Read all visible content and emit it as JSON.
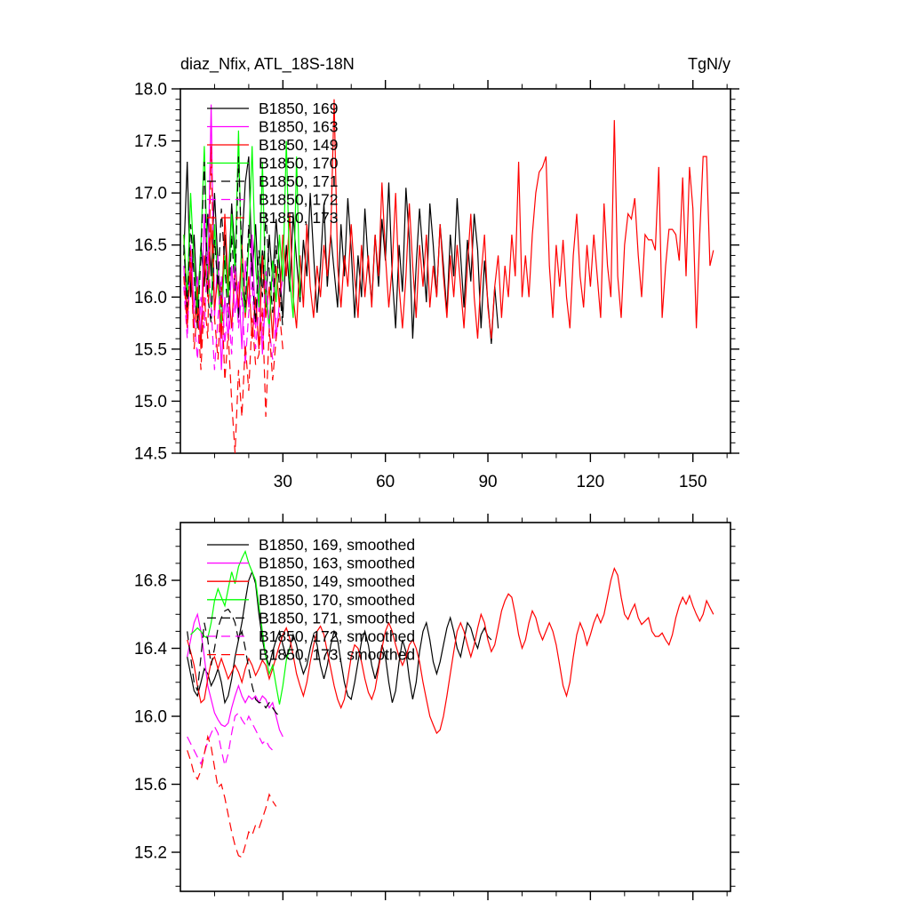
{
  "figure": {
    "background": "#ffffff"
  },
  "chart_data": [
    {
      "type": "line",
      "title": "diaz_Nfix, ATL_18S-18N",
      "units": "TgN/y",
      "xlim": [
        0,
        161
      ],
      "ylim": [
        14.5,
        18.0
      ],
      "xticks_major": [
        30,
        60,
        90,
        120,
        150
      ],
      "xtick_minor_step": 10,
      "yticks_major": [
        14.5,
        15.0,
        15.5,
        16.0,
        16.5,
        17.0,
        17.5,
        18.0
      ],
      "ytick_minor_step": 0.1,
      "show_x_tick_labels": true,
      "legend_position": "top-left-inside",
      "series": [
        {
          "name": "B1850, 169",
          "color": "#000000",
          "dash": false,
          "x_start": 1,
          "values": [
            16.4,
            17.3,
            16.0,
            16.6,
            15.9,
            16.5,
            16.1,
            16.8,
            16.2,
            17.0,
            16.3,
            15.9,
            16.6,
            16.1,
            16.9,
            16.4,
            15.8,
            16.5,
            17.1,
            17.35,
            16.2,
            16.7,
            16.0,
            16.45,
            15.9,
            16.6,
            16.15,
            16.75,
            16.3,
            15.8,
            16.5,
            16.05,
            16.8,
            16.35,
            15.95,
            16.55,
            16.2,
            17.0,
            16.4,
            15.85,
            16.3,
            16.9,
            16.1,
            16.6,
            16.25,
            15.9,
            16.7,
            16.2,
            16.95,
            16.45,
            15.8,
            16.4,
            16.0,
            16.85,
            16.3,
            15.95,
            16.6,
            16.1,
            16.75,
            16.35,
            17.1,
            16.2,
            15.7,
            16.5,
            16.05,
            17.05,
            16.55,
            15.6,
            16.3,
            16.85,
            16.4,
            15.95,
            16.9,
            16.5,
            16.0,
            16.7,
            16.3,
            15.85,
            16.6,
            16.2,
            16.95,
            16.4,
            15.9,
            16.55,
            16.15,
            16.8,
            16.45,
            15.7,
            16.35,
            15.95,
            15.55,
            16.1,
            15.7
          ]
        },
        {
          "name": "B1850, 163",
          "color": "#ff00ff",
          "dash": false,
          "x_start": 1,
          "values": [
            16.3,
            15.7,
            16.5,
            15.9,
            16.2,
            15.6,
            16.8,
            16.1,
            17.85,
            15.8,
            16.4,
            15.3,
            16.0,
            15.6,
            16.3,
            15.85,
            16.15,
            15.5,
            16.35,
            15.9,
            16.6,
            15.7,
            16.2,
            15.45,
            16.05,
            15.75,
            16.3,
            15.6,
            15.95,
            16.2
          ]
        },
        {
          "name": "B1850, 149",
          "color": "#ff0000",
          "dash": false,
          "x_start": 1,
          "values": [
            16.6,
            15.8,
            16.3,
            15.7,
            16.1,
            15.5,
            16.4,
            16.0,
            16.7,
            15.9,
            16.2,
            15.6,
            16.8,
            16.1,
            15.7,
            16.3,
            15.9,
            16.5,
            15.8,
            16.2,
            15.6,
            16.0,
            15.5,
            16.4,
            15.8,
            16.1,
            15.6,
            16.3,
            15.9,
            16.6,
            16.2,
            16.8,
            16.0,
            15.7,
            16.4,
            15.9,
            16.7,
            16.1,
            15.8,
            16.3,
            16.0,
            16.5,
            16.2,
            16.6,
            17.9,
            16.3,
            15.9,
            16.4,
            16.1,
            16.7,
            16.2,
            15.8,
            16.5,
            16.0,
            16.4,
            15.9,
            16.6,
            16.2,
            17.1,
            16.4,
            15.9,
            16.3,
            17.0,
            16.1,
            15.7,
            16.2,
            16.9,
            16.3,
            15.8,
            16.5,
            16.1,
            16.6,
            15.9,
            16.3,
            16.0,
            16.7,
            16.2,
            15.8,
            16.4,
            16.0,
            16.5,
            16.1,
            15.7,
            16.3,
            16.8,
            16.0,
            15.6,
            16.2,
            16.6,
            15.9,
            15.6,
            16.1,
            16.4,
            15.8,
            16.3,
            16.0,
            16.6,
            16.2,
            17.3,
            16.0,
            16.4,
            16.0,
            16.6,
            17.0,
            17.2,
            17.25,
            17.35,
            16.3,
            15.8,
            16.5,
            16.1,
            16.55,
            16.0,
            15.7,
            16.4,
            16.8,
            16.2,
            15.9,
            16.5,
            16.1,
            16.6,
            16.2,
            15.8,
            16.9,
            16.3,
            16.0,
            17.7,
            16.2,
            15.8,
            16.5,
            16.8,
            16.75,
            16.95,
            16.4,
            16.0,
            16.6,
            16.55,
            16.55,
            16.45,
            17.25,
            15.8,
            16.3,
            16.65,
            16.65,
            16.6,
            16.35,
            17.15,
            16.2,
            17.25,
            16.85,
            15.7,
            16.6,
            17.35,
            17.35,
            16.3,
            16.45
          ]
        },
        {
          "name": "B1850, 170",
          "color": "#00ff00",
          "dash": false,
          "x_start": 1,
          "values": [
            16.6,
            16.0,
            17.0,
            16.3,
            15.8,
            16.5,
            17.45,
            16.2,
            15.9,
            16.7,
            16.1,
            15.75,
            16.4,
            16.0,
            16.8,
            16.25,
            17.6,
            16.1,
            15.85,
            16.5,
            17.45,
            16.3,
            15.9,
            17.3,
            16.0,
            15.7,
            16.35,
            15.95,
            16.6,
            16.15,
            17.5,
            16.2,
            15.8,
            17.35,
            16.0
          ]
        },
        {
          "name": "B1850, 171",
          "color": "#000000",
          "dash": true,
          "x_start": 1,
          "values": [
            16.5,
            15.9,
            16.7,
            16.2,
            15.7,
            16.4,
            17.3,
            16.0,
            15.75,
            16.55,
            16.1,
            16.85,
            16.3,
            15.8,
            16.6,
            16.05,
            17.35,
            16.4,
            15.9,
            16.7,
            16.2,
            15.75,
            16.45,
            16.0,
            16.8,
            16.25,
            15.85,
            16.5,
            16.1,
            15.7
          ]
        },
        {
          "name": "B1850, 172",
          "color": "#ff00ff",
          "dash": true,
          "x_start": 1,
          "values": [
            16.1,
            15.6,
            16.4,
            15.8,
            15.4,
            16.0,
            15.7,
            16.45,
            15.9,
            15.3,
            15.8,
            16.2,
            15.55,
            15.95,
            15.45,
            16.3,
            15.7,
            16.05,
            15.35,
            15.85,
            16.15,
            15.5,
            15.9,
            15.6,
            16.25,
            15.7,
            15.4,
            15.8
          ]
        },
        {
          "name": "B1850, 173",
          "color": "#ff0000",
          "dash": true,
          "x_start": 1,
          "values": [
            16.2,
            15.7,
            16.45,
            15.5,
            15.9,
            15.3,
            16.0,
            15.6,
            17.45,
            15.8,
            15.4,
            16.1,
            15.2,
            15.65,
            15.0,
            14.5,
            15.3,
            14.85,
            15.55,
            15.1,
            15.8,
            15.35,
            15.45,
            15.9,
            14.85,
            15.7,
            15.2,
            15.6,
            15.85,
            15.5
          ]
        }
      ]
    },
    {
      "type": "line",
      "title": "",
      "units": "",
      "xlim": [
        0,
        161
      ],
      "ylim": [
        14.97,
        17.14
      ],
      "xticks_major": [
        30,
        60,
        90,
        120,
        150
      ],
      "xtick_minor_step": 10,
      "yticks_major": [
        15.2,
        15.6,
        16.0,
        16.4,
        16.8
      ],
      "ytick_minor_step": 0.1,
      "show_x_tick_labels": false,
      "legend_position": "top-left-inside",
      "series": [
        {
          "name": "B1850, 169, smoothed",
          "color": "#000000",
          "dash": false,
          "x_start": 2,
          "values": [
            16.35,
            16.25,
            16.15,
            16.12,
            16.2,
            16.28,
            16.25,
            16.18,
            16.22,
            16.28,
            16.2,
            16.08,
            16.12,
            16.22,
            16.35,
            16.45,
            16.55,
            16.68,
            16.8,
            16.85,
            16.78,
            16.6,
            16.45,
            16.35,
            16.3,
            16.38,
            16.45,
            16.5,
            16.42,
            16.35,
            16.4,
            16.48,
            16.42,
            16.32,
            16.25,
            16.3,
            16.4,
            16.48,
            16.42,
            16.3,
            16.22,
            16.3,
            16.42,
            16.5,
            16.45,
            16.32,
            16.2,
            16.12,
            16.1,
            16.2,
            16.32,
            16.44,
            16.5,
            16.42,
            16.3,
            16.22,
            16.3,
            16.42,
            16.35,
            16.2,
            16.08,
            16.15,
            16.32,
            16.45,
            16.38,
            16.22,
            16.1,
            16.2,
            16.38,
            16.5,
            16.55,
            16.45,
            16.32,
            16.25,
            16.32,
            16.42,
            16.52,
            16.58,
            16.5,
            16.4,
            16.35,
            16.45,
            16.55,
            16.52,
            16.45,
            16.4,
            16.48,
            16.52,
            16.47,
            16.45
          ]
        },
        {
          "name": "B1850, 163, smoothed",
          "color": "#ff00ff",
          "dash": false,
          "x_start": 2,
          "values": [
            16.35,
            16.45,
            16.55,
            16.6,
            16.5,
            16.35,
            16.18,
            16.1,
            16.02,
            15.98,
            15.95,
            15.94,
            15.96,
            16.05,
            16.12,
            16.18,
            16.12,
            16.08,
            16.12,
            16.1,
            16.12,
            16.08,
            16.12,
            16.1,
            16.05,
            16.08,
            16.0,
            15.92,
            15.88
          ]
        },
        {
          "name": "B1850, 149, smoothed",
          "color": "#ff0000",
          "dash": false,
          "x_start": 2,
          "values": [
            16.45,
            16.38,
            16.3,
            16.18,
            16.08,
            16.1,
            16.22,
            16.32,
            16.35,
            16.28,
            16.34,
            16.28,
            16.22,
            16.26,
            16.3,
            16.26,
            16.2,
            16.28,
            16.34,
            16.3,
            16.24,
            16.28,
            16.33,
            16.3,
            16.22,
            16.28,
            16.35,
            16.42,
            16.48,
            16.52,
            16.46,
            16.36,
            16.25,
            16.18,
            16.12,
            16.2,
            16.32,
            16.42,
            16.5,
            16.53,
            16.48,
            16.38,
            16.28,
            16.18,
            16.1,
            16.05,
            16.1,
            16.22,
            16.35,
            16.42,
            16.4,
            16.32,
            16.22,
            16.14,
            16.1,
            16.16,
            16.28,
            16.4,
            16.5,
            16.55,
            16.5,
            16.42,
            16.35,
            16.3,
            16.35,
            16.42,
            16.45,
            16.4,
            16.32,
            16.2,
            16.1,
            16.0,
            15.95,
            15.9,
            15.92,
            16.0,
            16.12,
            16.25,
            16.38,
            16.5,
            16.55,
            16.5,
            16.42,
            16.35,
            16.42,
            16.52,
            16.6,
            16.55,
            16.45,
            16.38,
            16.42,
            16.52,
            16.62,
            16.68,
            16.72,
            16.7,
            16.6,
            16.48,
            16.4,
            16.45,
            16.55,
            16.62,
            16.58,
            16.5,
            16.45,
            16.5,
            16.55,
            16.5,
            16.42,
            16.3,
            16.18,
            16.12,
            16.2,
            16.35,
            16.48,
            16.55,
            16.5,
            16.42,
            16.48,
            16.55,
            16.6,
            16.55,
            16.6,
            16.7,
            16.8,
            16.87,
            16.83,
            16.7,
            16.6,
            16.57,
            16.62,
            16.66,
            16.58,
            16.54,
            16.56,
            16.58,
            16.5,
            16.47,
            16.47,
            16.49,
            16.45,
            16.42,
            16.48,
            16.58,
            16.65,
            16.7,
            16.66,
            16.71,
            16.65,
            16.6,
            16.56,
            16.6,
            16.68,
            16.64,
            16.6
          ]
        },
        {
          "name": "B1850, 170, smoothed",
          "color": "#00ff00",
          "dash": false,
          "x_start": 3,
          "values": [
            16.48,
            16.5,
            16.52,
            16.5,
            16.47,
            16.46,
            16.55,
            16.68,
            16.75,
            16.7,
            16.65,
            16.75,
            16.85,
            16.78,
            16.88,
            16.93,
            16.97,
            16.9,
            16.85,
            16.8,
            16.65,
            16.5,
            16.35,
            16.25,
            16.3,
            16.18,
            16.07,
            16.18,
            16.33,
            16.4
          ]
        },
        {
          "name": "B1850, 171, smoothed",
          "color": "#000000",
          "dash": true,
          "x_start": 2,
          "values": [
            16.5,
            16.35,
            16.2,
            16.15,
            16.35,
            16.55,
            16.45,
            16.3,
            16.4,
            16.52,
            16.58,
            16.62,
            16.63,
            16.6,
            16.55,
            16.45,
            16.5,
            16.4,
            16.28,
            16.18,
            16.1,
            16.08,
            16.08,
            16.05,
            16.08,
            16.05,
            16.02,
            16.0
          ]
        },
        {
          "name": "B1850, 172, smoothed",
          "color": "#ff00ff",
          "dash": true,
          "x_start": 2,
          "values": [
            15.88,
            15.84,
            15.8,
            15.76,
            15.72,
            15.78,
            15.85,
            15.9,
            15.94,
            15.9,
            15.8,
            15.71,
            15.78,
            15.9,
            16.0,
            16.02,
            15.98,
            15.95,
            16.0,
            15.96,
            15.92,
            15.88,
            15.84,
            15.86,
            15.82,
            15.8,
            15.78
          ]
        },
        {
          "name": "B1850, 173, smoothed",
          "color": "#ff0000",
          "dash": true,
          "x_start": 2,
          "values": [
            15.8,
            15.74,
            15.66,
            15.63,
            15.68,
            15.78,
            15.88,
            15.82,
            15.7,
            15.58,
            15.6,
            15.52,
            15.42,
            15.32,
            15.24,
            15.18,
            15.17,
            15.24,
            15.32,
            15.3,
            15.36,
            15.34,
            15.4,
            15.46,
            15.54,
            15.5,
            15.47
          ]
        }
      ]
    }
  ]
}
